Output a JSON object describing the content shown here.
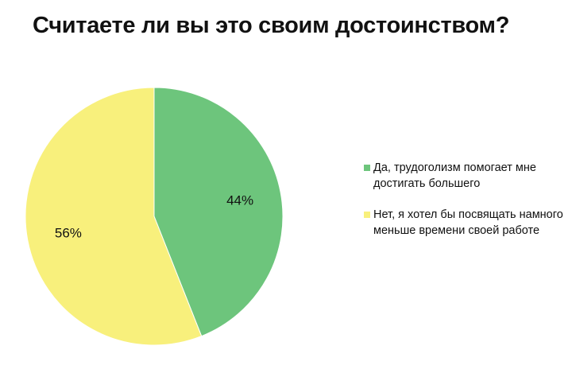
{
  "chart_data": {
    "type": "pie",
    "title": "Считаете ли вы это своим достоинством?",
    "slices": [
      {
        "label": "Да, трудоголизм помогает мне достигать большего",
        "value": 44,
        "display": "44%",
        "color": "#6dc57c"
      },
      {
        "label": "Нет, я хотел бы посвящать намного меньше времени своей работе",
        "value": 56,
        "display": "56%",
        "color": "#f8f07c"
      }
    ],
    "legend_position": "right"
  }
}
